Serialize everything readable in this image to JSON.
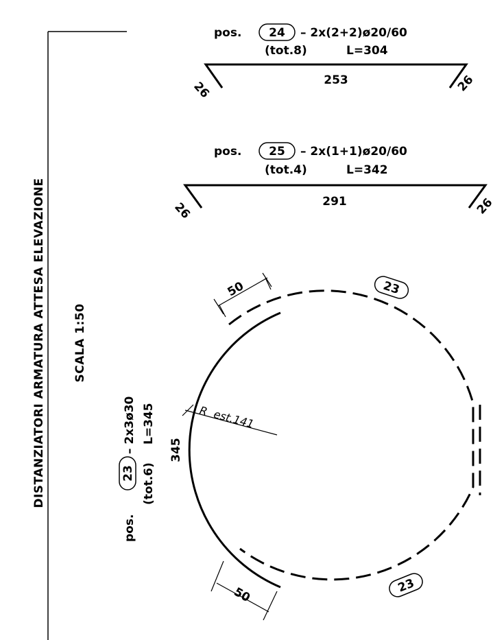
{
  "frame_title": "DISTANZIATORI ARMATURA ATTESA ELEVAZIONE",
  "frame_scale": "SCALA 1:50",
  "bar24": {
    "pos_word": "pos.",
    "pos_number": "24",
    "spec": "–  2x(2+2)ø20/60",
    "total": "(tot.8)",
    "length": "L=304",
    "middle": "253",
    "left_hook": "26",
    "right_hook": "26"
  },
  "bar25": {
    "pos_word": "pos.",
    "pos_number": "25",
    "spec": "–  2x(1+1)ø20/60",
    "total": "(tot.4)",
    "length": "L=342",
    "middle": "291",
    "left_hook": "26",
    "right_hook": "26"
  },
  "bar23": {
    "pos_word": "pos.",
    "pos_number": "23",
    "spec": "–  2x3ø30",
    "total": "(tot.6)",
    "length": "L=345",
    "arc_length": "345",
    "radius": "R  est.141",
    "overlap_top": "50",
    "overlap_bottom": "50",
    "tag_top": "23",
    "tag_bottom": "23"
  }
}
